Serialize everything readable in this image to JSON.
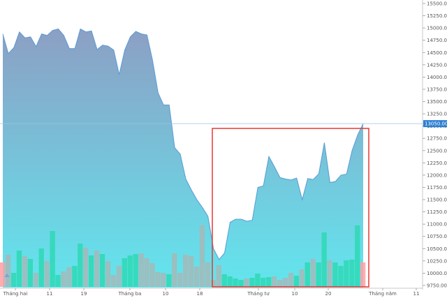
{
  "chart_data": {
    "type": "area",
    "title": "",
    "xlabel": "",
    "ylabel": "",
    "ylim": [
      9750,
      15500
    ],
    "y_ticks": [
      9750,
      10000,
      10250,
      10500,
      10750,
      11000,
      11250,
      11500,
      11750,
      12000,
      12250,
      12500,
      12750,
      13000,
      13250,
      13500,
      13750,
      14000,
      14250,
      14500,
      14750,
      15000,
      15250,
      15500
    ],
    "x_tick_labels": [
      "Tháng hai",
      "11",
      "19",
      "Tháng ba",
      "10",
      "18",
      "Tháng tư",
      "10",
      "20",
      "Tháng năm",
      "11"
    ],
    "current_price": {
      "label": "13050.00",
      "value": 13050,
      "color": "#2b7fd4"
    },
    "series": [
      {
        "kind": "price-area",
        "values": [
          14880,
          14480,
          14600,
          14920,
          14800,
          14820,
          14620,
          14880,
          14850,
          14950,
          14980,
          14850,
          14580,
          14580,
          14980,
          14920,
          14940,
          14560,
          14650,
          14630,
          14550,
          14050,
          14550,
          14820,
          14930,
          14880,
          14860,
          14350,
          13680,
          13430,
          13430,
          12560,
          12430,
          11920,
          11700,
          11500,
          11340,
          11160,
          10500,
          10280,
          10410,
          11040,
          11100,
          11100,
          11060,
          11080,
          11750,
          11780,
          12380,
          12170,
          11950,
          11920,
          11900,
          11940,
          11500,
          11930,
          11910,
          12030,
          12660,
          11850,
          11870,
          12000,
          12020,
          12500,
          12820,
          13050
        ],
        "color_top": "#8c9fc4",
        "color_bottom": "#62e6ee",
        "line_color": "#5a9bd5"
      },
      {
        "kind": "volume",
        "values": [
          0.35,
          0.46,
          0.2,
          0.52,
          0.44,
          0.4,
          0.2,
          0.55,
          0.37,
          0.8,
          0.17,
          0.22,
          0.28,
          0.3,
          0.62,
          0.56,
          0.45,
          0.52,
          0.47,
          0.37,
          0.17,
          0.3,
          0.41,
          0.45,
          0.47,
          0.48,
          0.41,
          0.34,
          0.21,
          0.2,
          0.18,
          0.48,
          0.2,
          0.46,
          0.44,
          0.29,
          0.88,
          0.35,
          0.1,
          0.31,
          0.18,
          0.15,
          0.12,
          0.1,
          0.12,
          0.13,
          0.19,
          0.13,
          0.14,
          0.15,
          0.1,
          0.13,
          0.2,
          0.16,
          0.25,
          0.35,
          0.4,
          0.35,
          0.78,
          0.38,
          0.35,
          0.3,
          0.38,
          0.39,
          0.88,
          0.35
        ],
        "color_up": "#2ed8b4",
        "color_down": "#a6b8b8",
        "color_edge": "#ff9fa3"
      }
    ],
    "highlight_box": {
      "color": "#e53935"
    }
  }
}
